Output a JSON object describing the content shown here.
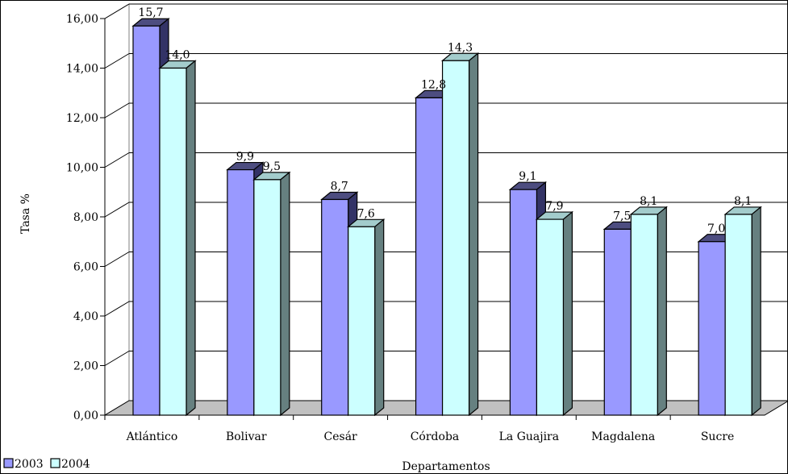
{
  "chart_data": {
    "type": "bar",
    "categories": [
      "Atlántico",
      "Bolivar",
      "Cesár",
      "Córdoba",
      "La Guajira",
      "Magdalena",
      "Sucre"
    ],
    "series": [
      {
        "name": "2003",
        "values": [
          15.7,
          9.9,
          8.7,
          12.8,
          9.1,
          7.5,
          7.0
        ],
        "labels": [
          "15,7",
          "9,9",
          "8,7",
          "12,8",
          "9,1",
          "7,5",
          "7,0"
        ],
        "color": "#9999ff"
      },
      {
        "name": "2004",
        "values": [
          14.0,
          9.5,
          7.6,
          14.3,
          7.9,
          8.1,
          8.1
        ],
        "labels": [
          "14,0",
          "9,5",
          "7,6",
          "14,3",
          "7,9",
          "8,1",
          "8,1"
        ],
        "color": "#ccffff"
      }
    ],
    "xlabel": "Departamentos",
    "ylabel": "Tasa %",
    "ylim": [
      0,
      16
    ],
    "yticks": [
      "0,00",
      "2,00",
      "4,00",
      "6,00",
      "8,00",
      "10,00",
      "12,00",
      "14,00",
      "16,00"
    ],
    "grid": true,
    "legend": "bottom-left",
    "floor_color": "#c0c0c0"
  }
}
